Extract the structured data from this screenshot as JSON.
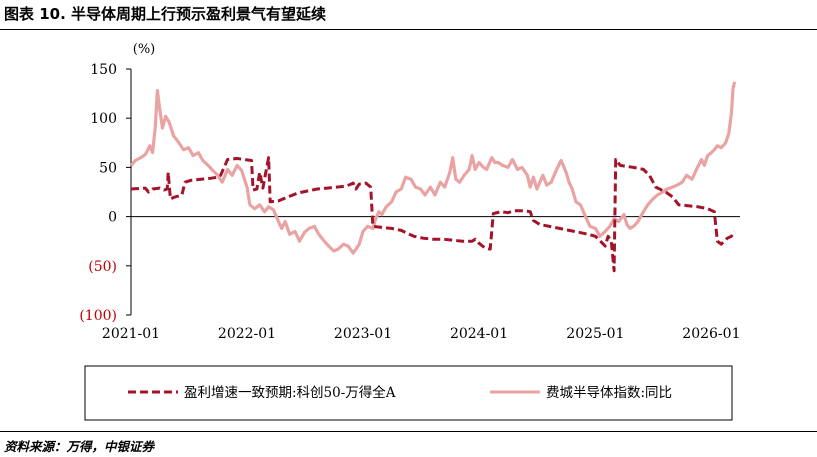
{
  "header": {
    "title": "图表 10.  半导体周期上行预示盈利景气有望延续"
  },
  "footer": {
    "source": "资料来源：万得，中银证券"
  },
  "chart_data": {
    "type": "line",
    "unit_label": "(%)",
    "ylim": [
      -100,
      150
    ],
    "y_ticks": [
      150,
      100,
      50,
      0,
      -50,
      -100
    ],
    "y_tick_labels": [
      "150",
      "100",
      "50",
      "0",
      "(50)",
      "(100)"
    ],
    "x_ticks": [
      "2021-01",
      "2022-01",
      "2023-01",
      "2024-01",
      "2025-01",
      "2026-01"
    ],
    "xlim": [
      "2021-01-01",
      "2026-04-01"
    ],
    "grid": false,
    "legend_position": "bottom",
    "series": [
      {
        "name": "盈利增速一致预期:科创50-万得全A",
        "color": "#a3142a",
        "style": "dashed",
        "points": [
          [
            "2021-01-01",
            28
          ],
          [
            "2021-02-15",
            29
          ],
          [
            "2021-02-25",
            25
          ],
          [
            "2021-03-10",
            28
          ],
          [
            "2021-04-01",
            29
          ],
          [
            "2021-04-15",
            27
          ],
          [
            "2021-04-25",
            28
          ],
          [
            "2021-04-28",
            45
          ],
          [
            "2021-05-05",
            18
          ],
          [
            "2021-05-20",
            20
          ],
          [
            "2021-06-10",
            22
          ],
          [
            "2021-06-20",
            35
          ],
          [
            "2021-07-10",
            37
          ],
          [
            "2021-08-10",
            38
          ],
          [
            "2021-09-10",
            39
          ],
          [
            "2021-10-01",
            40
          ],
          [
            "2021-10-10",
            42
          ],
          [
            "2021-11-01",
            58
          ],
          [
            "2021-12-01",
            59
          ],
          [
            "2022-01-15",
            57
          ],
          [
            "2022-01-20",
            27
          ],
          [
            "2022-02-01",
            28
          ],
          [
            "2022-02-10",
            45
          ],
          [
            "2022-02-20",
            29
          ],
          [
            "2022-03-01",
            45
          ],
          [
            "2022-03-10",
            60
          ],
          [
            "2022-03-15",
            15
          ],
          [
            "2022-04-10",
            16
          ],
          [
            "2022-05-10",
            20
          ],
          [
            "2022-06-10",
            24
          ],
          [
            "2022-07-10",
            26
          ],
          [
            "2022-08-10",
            28
          ],
          [
            "2022-09-10",
            29
          ],
          [
            "2022-10-10",
            30
          ],
          [
            "2022-11-10",
            31
          ],
          [
            "2022-12-01",
            34
          ],
          [
            "2022-12-10",
            28
          ],
          [
            "2022-12-20",
            33
          ],
          [
            "2023-01-10",
            34
          ],
          [
            "2023-01-25",
            30
          ],
          [
            "2023-02-01",
            -10
          ],
          [
            "2023-03-01",
            -11
          ],
          [
            "2023-04-01",
            -12
          ],
          [
            "2023-05-01",
            -14
          ],
          [
            "2023-05-20",
            -17
          ],
          [
            "2023-06-10",
            -20
          ],
          [
            "2023-07-10",
            -22
          ],
          [
            "2023-08-10",
            -23
          ],
          [
            "2023-09-10",
            -23
          ],
          [
            "2023-10-10",
            -24
          ],
          [
            "2023-11-10",
            -25
          ],
          [
            "2023-12-10",
            -25
          ],
          [
            "2023-12-20",
            -23
          ],
          [
            "2024-01-01",
            -27
          ],
          [
            "2024-01-20",
            -32
          ],
          [
            "2024-02-05",
            -33
          ],
          [
            "2024-02-15",
            3
          ],
          [
            "2024-03-10",
            5
          ],
          [
            "2024-04-01",
            4
          ],
          [
            "2024-04-20",
            6
          ],
          [
            "2024-05-20",
            6
          ],
          [
            "2024-06-10",
            5
          ],
          [
            "2024-06-20",
            -4
          ],
          [
            "2024-07-10",
            -8
          ],
          [
            "2024-08-10",
            -10
          ],
          [
            "2024-09-10",
            -12
          ],
          [
            "2024-10-10",
            -14
          ],
          [
            "2024-11-10",
            -16
          ],
          [
            "2024-12-10",
            -18
          ],
          [
            "2025-01-01",
            -20
          ],
          [
            "2025-01-20",
            -26
          ],
          [
            "2025-02-01",
            -30
          ],
          [
            "2025-02-10",
            -20
          ],
          [
            "2025-02-20",
            -25
          ],
          [
            "2025-03-01",
            -55
          ],
          [
            "2025-03-06",
            58
          ],
          [
            "2025-03-20",
            52
          ],
          [
            "2025-05-01",
            50
          ],
          [
            "2025-06-01",
            48
          ],
          [
            "2025-06-20",
            42
          ],
          [
            "2025-07-10",
            30
          ],
          [
            "2025-08-10",
            25
          ],
          [
            "2025-09-01",
            20
          ],
          [
            "2025-09-20",
            12
          ],
          [
            "2025-10-20",
            11
          ],
          [
            "2025-11-20",
            10
          ],
          [
            "2025-12-20",
            8
          ],
          [
            "2026-01-10",
            5
          ],
          [
            "2026-01-20",
            -25
          ],
          [
            "2026-02-01",
            -28
          ],
          [
            "2026-02-20",
            -22
          ],
          [
            "2026-03-05",
            -20
          ],
          [
            "2026-03-15",
            -15
          ]
        ]
      },
      {
        "name": "费城半导体指数:同比",
        "color": "#eaa3a3",
        "style": "solid",
        "points": [
          [
            "2021-01-01",
            52
          ],
          [
            "2021-01-15",
            57
          ],
          [
            "2021-02-01",
            60
          ],
          [
            "2021-02-15",
            63
          ],
          [
            "2021-03-01",
            72
          ],
          [
            "2021-03-10",
            65
          ],
          [
            "2021-03-18",
            90
          ],
          [
            "2021-03-25",
            128
          ],
          [
            "2021-04-01",
            110
          ],
          [
            "2021-04-10",
            90
          ],
          [
            "2021-04-20",
            102
          ],
          [
            "2021-05-01",
            96
          ],
          [
            "2021-05-15",
            82
          ],
          [
            "2021-06-01",
            75
          ],
          [
            "2021-06-15",
            68
          ],
          [
            "2021-07-01",
            70
          ],
          [
            "2021-07-15",
            62
          ],
          [
            "2021-08-01",
            65
          ],
          [
            "2021-08-15",
            57
          ],
          [
            "2021-09-01",
            52
          ],
          [
            "2021-09-15",
            47
          ],
          [
            "2021-10-01",
            42
          ],
          [
            "2021-10-15",
            35
          ],
          [
            "2021-11-01",
            48
          ],
          [
            "2021-11-15",
            42
          ],
          [
            "2021-12-01",
            52
          ],
          [
            "2021-12-15",
            47
          ],
          [
            "2022-01-01",
            30
          ],
          [
            "2022-01-10",
            12
          ],
          [
            "2022-01-25",
            8
          ],
          [
            "2022-02-10",
            12
          ],
          [
            "2022-02-25",
            5
          ],
          [
            "2022-03-10",
            10
          ],
          [
            "2022-03-25",
            7
          ],
          [
            "2022-04-10",
            -5
          ],
          [
            "2022-04-20",
            -12
          ],
          [
            "2022-05-01",
            -5
          ],
          [
            "2022-05-15",
            -18
          ],
          [
            "2022-06-01",
            -15
          ],
          [
            "2022-06-15",
            -25
          ],
          [
            "2022-07-01",
            -16
          ],
          [
            "2022-07-15",
            -12
          ],
          [
            "2022-08-01",
            -10
          ],
          [
            "2022-08-15",
            -18
          ],
          [
            "2022-09-01",
            -25
          ],
          [
            "2022-09-15",
            -30
          ],
          [
            "2022-10-01",
            -35
          ],
          [
            "2022-10-15",
            -33
          ],
          [
            "2022-11-01",
            -28
          ],
          [
            "2022-11-15",
            -30
          ],
          [
            "2022-12-01",
            -37
          ],
          [
            "2022-12-10",
            -33
          ],
          [
            "2022-12-20",
            -28
          ],
          [
            "2023-01-01",
            -15
          ],
          [
            "2023-01-15",
            -10
          ],
          [
            "2023-02-01",
            -12
          ],
          [
            "2023-02-10",
            -2
          ],
          [
            "2023-02-20",
            5
          ],
          [
            "2023-03-01",
            2
          ],
          [
            "2023-03-15",
            10
          ],
          [
            "2023-04-01",
            15
          ],
          [
            "2023-04-15",
            25
          ],
          [
            "2023-05-01",
            28
          ],
          [
            "2023-05-15",
            40
          ],
          [
            "2023-06-01",
            38
          ],
          [
            "2023-06-15",
            30
          ],
          [
            "2023-07-01",
            28
          ],
          [
            "2023-07-15",
            22
          ],
          [
            "2023-08-01",
            30
          ],
          [
            "2023-08-15",
            22
          ],
          [
            "2023-09-01",
            35
          ],
          [
            "2023-09-15",
            30
          ],
          [
            "2023-10-01",
            45
          ],
          [
            "2023-10-10",
            60
          ],
          [
            "2023-10-20",
            38
          ],
          [
            "2023-11-01",
            35
          ],
          [
            "2023-11-15",
            42
          ],
          [
            "2023-12-01",
            48
          ],
          [
            "2023-12-10",
            62
          ],
          [
            "2023-12-20",
            48
          ],
          [
            "2024-01-01",
            55
          ],
          [
            "2024-01-15",
            50
          ],
          [
            "2024-01-25",
            48
          ],
          [
            "2024-02-10",
            60
          ],
          [
            "2024-02-20",
            55
          ],
          [
            "2024-03-01",
            55
          ],
          [
            "2024-03-15",
            52
          ],
          [
            "2024-04-01",
            50
          ],
          [
            "2024-04-15",
            58
          ],
          [
            "2024-05-01",
            48
          ],
          [
            "2024-05-15",
            50
          ],
          [
            "2024-06-01",
            42
          ],
          [
            "2024-06-10",
            30
          ],
          [
            "2024-06-20",
            40
          ],
          [
            "2024-07-01",
            28
          ],
          [
            "2024-07-10",
            35
          ],
          [
            "2024-07-20",
            42
          ],
          [
            "2024-08-01",
            32
          ],
          [
            "2024-08-15",
            35
          ],
          [
            "2024-09-01",
            48
          ],
          [
            "2024-09-15",
            57
          ],
          [
            "2024-10-01",
            45
          ],
          [
            "2024-10-10",
            35
          ],
          [
            "2024-10-20",
            28
          ],
          [
            "2024-11-01",
            15
          ],
          [
            "2024-11-15",
            12
          ],
          [
            "2024-12-01",
            0
          ],
          [
            "2024-12-15",
            -10
          ],
          [
            "2025-01-01",
            -12
          ],
          [
            "2025-01-15",
            -20
          ],
          [
            "2025-02-01",
            -15
          ],
          [
            "2025-02-15",
            -10
          ],
          [
            "2025-03-01",
            -2
          ],
          [
            "2025-03-15",
            -5
          ],
          [
            "2025-04-01",
            2
          ],
          [
            "2025-04-10",
            -8
          ],
          [
            "2025-04-20",
            -12
          ],
          [
            "2025-05-01",
            -10
          ],
          [
            "2025-05-15",
            -5
          ],
          [
            "2025-06-01",
            5
          ],
          [
            "2025-06-15",
            12
          ],
          [
            "2025-07-01",
            18
          ],
          [
            "2025-07-15",
            22
          ],
          [
            "2025-08-01",
            25
          ],
          [
            "2025-08-15",
            28
          ],
          [
            "2025-09-01",
            30
          ],
          [
            "2025-09-15",
            32
          ],
          [
            "2025-10-01",
            35
          ],
          [
            "2025-10-15",
            42
          ],
          [
            "2025-11-01",
            38
          ],
          [
            "2025-11-15",
            48
          ],
          [
            "2025-12-01",
            58
          ],
          [
            "2025-12-10",
            52
          ],
          [
            "2025-12-20",
            62
          ],
          [
            "2026-01-01",
            65
          ],
          [
            "2026-01-10",
            68
          ],
          [
            "2026-01-20",
            72
          ],
          [
            "2026-02-01",
            70
          ],
          [
            "2026-02-15",
            75
          ],
          [
            "2026-02-25",
            85
          ],
          [
            "2026-03-05",
            105
          ],
          [
            "2026-03-10",
            130
          ],
          [
            "2026-03-15",
            137
          ]
        ]
      }
    ]
  }
}
